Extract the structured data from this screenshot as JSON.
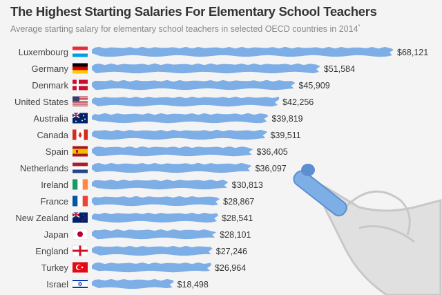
{
  "title": "The Highest Starting Salaries For Elementary School Teachers",
  "subtitle": "Average starting salary for elementary school teachers in selected OECD countries in 2014",
  "subtitle_mark": "*",
  "chart_data": {
    "type": "bar",
    "orientation": "horizontal",
    "title": "The Highest Starting Salaries For Elementary School Teachers",
    "xlabel": "",
    "ylabel": "",
    "bar_color": "#7eaee6",
    "categories": [
      "Luxembourg",
      "Germany",
      "Denmark",
      "United States",
      "Australia",
      "Canada",
      "Spain",
      "Netherlands",
      "Ireland",
      "France",
      "New Zealand",
      "Japan",
      "England",
      "Turkey",
      "Israel"
    ],
    "values": [
      68121,
      51584,
      45909,
      42256,
      39819,
      39511,
      36405,
      36097,
      30813,
      28867,
      28541,
      28101,
      27246,
      26964,
      18498
    ],
    "labels": [
      "$68,121",
      "$51,584",
      "$45,909",
      "$42,256",
      "$39,819",
      "$39,511",
      "$36,405",
      "$36,097",
      "$30,813",
      "$28,867",
      "$28,541",
      "$28,101",
      "$27,246",
      "$26,964",
      "$18,498"
    ],
    "flags": [
      "luxembourg-flag-icon",
      "germany-flag-icon",
      "denmark-flag-icon",
      "united-states-flag-icon",
      "australia-flag-icon",
      "canada-flag-icon",
      "spain-flag-icon",
      "netherlands-flag-icon",
      "ireland-flag-icon",
      "france-flag-icon",
      "new-zealand-flag-icon",
      "japan-flag-icon",
      "england-flag-icon",
      "turkey-flag-icon",
      "israel-flag-icon"
    ]
  }
}
